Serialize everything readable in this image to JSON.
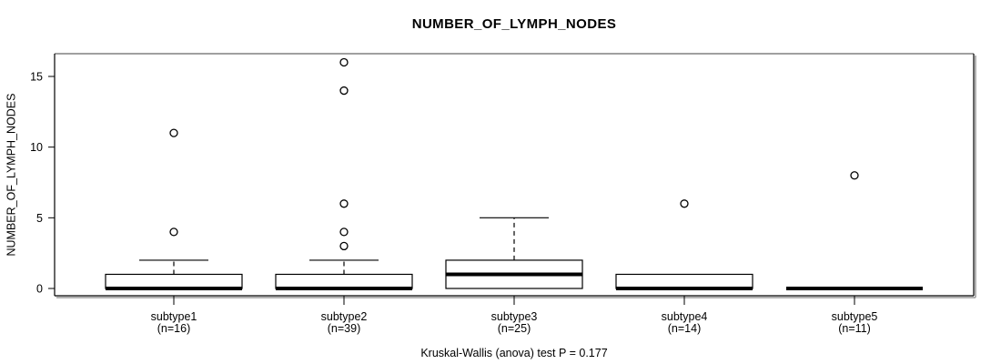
{
  "figure": {
    "title": "NUMBER_OF_LYMPH_NODES",
    "caption": "Kruskal-Wallis (anova) test P = 0.177"
  },
  "chart_data": {
    "type": "boxplot",
    "title": "NUMBER_OF_LYMPH_NODES",
    "xlabel": "",
    "ylabel": "NUMBER_OF_LYMPH_NODES",
    "caption": "Kruskal-Wallis (anova) test P = 0.177",
    "ylim": [
      -0.6,
      16.6
    ],
    "yticks": [
      0,
      5,
      10,
      15
    ],
    "grid": false,
    "legend": null,
    "categories": [
      "subtype1",
      "subtype2",
      "subtype3",
      "subtype4",
      "subtype5"
    ],
    "groups": [
      {
        "category": "subtype1",
        "sublabel": "(n=16)",
        "n": 16,
        "whisker_low": 0,
        "q1": 0,
        "median": 0,
        "q3": 1,
        "whisker_high": 2,
        "outliers": [
          4,
          11
        ]
      },
      {
        "category": "subtype2",
        "sublabel": "(n=39)",
        "n": 39,
        "whisker_low": 0,
        "q1": 0,
        "median": 0,
        "q3": 1,
        "whisker_high": 2,
        "outliers": [
          3,
          4,
          6,
          14,
          16
        ]
      },
      {
        "category": "subtype3",
        "sublabel": "(n=25)",
        "n": 25,
        "whisker_low": 0,
        "q1": 0,
        "median": 1,
        "q3": 2,
        "whisker_high": 5,
        "outliers": []
      },
      {
        "category": "subtype4",
        "sublabel": "(n=14)",
        "n": 14,
        "whisker_low": 0,
        "q1": 0,
        "median": 0,
        "q3": 1,
        "whisker_high": 1,
        "outliers": [
          6
        ]
      },
      {
        "category": "subtype5",
        "sublabel": "(n=11)",
        "n": 11,
        "whisker_low": 0,
        "q1": 0,
        "median": 0,
        "q3": 0,
        "whisker_high": 0,
        "outliers": [
          8
        ]
      }
    ]
  },
  "colors": {
    "line": "#000000",
    "text": "#000000",
    "box_fill": "#ffffff",
    "outlier_fill": "#ffffff",
    "frame_top": "#808080",
    "shadow": "#9a9a9a",
    "background": "#ffffff"
  }
}
